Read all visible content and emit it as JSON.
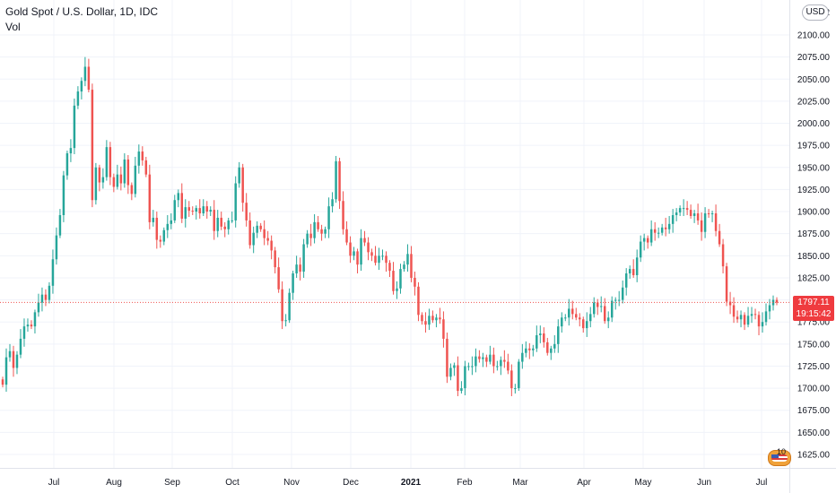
{
  "legend": {
    "title": "Gold Spot / U.S. Dollar, 1D, IDC",
    "sub": "Vol"
  },
  "currency_button": "USD",
  "last_price": {
    "value": "1797.11",
    "countdown": "19:15:42"
  },
  "badge_number": "10",
  "colors": {
    "up": "#26a69a",
    "down": "#ef5350",
    "grid": "#f0f3fa",
    "price_line": "#ef5350",
    "tag": "#ef3b3f"
  },
  "chart_data": {
    "type": "candlestick",
    "title": "Gold Spot / U.S. Dollar, 1D, IDC",
    "ylabel": "",
    "xlabel": "",
    "ylim": [
      1615,
      2110
    ],
    "y_ticks": [
      "1625.00",
      "1650.00",
      "1675.00",
      "1700.00",
      "1725.00",
      "1750.00",
      "1775.00",
      "1800.00",
      "1825.00",
      "1850.00",
      "1875.00",
      "1900.00",
      "1925.00",
      "1950.00",
      "1975.00",
      "2000.00",
      "2025.00",
      "2050.00",
      "2075.00",
      "2100.00"
    ],
    "x_ticks": [
      "Jul",
      "Aug",
      "Sep",
      "Oct",
      "Nov",
      "Dec",
      "2021",
      "Feb",
      "Mar",
      "Apr",
      "May",
      "Jun",
      "Jul"
    ],
    "x_tick_bold": [
      "2021"
    ],
    "last_price": 1797.11,
    "grid": true,
    "series": [
      {
        "close": [
          1704,
          1735,
          1742,
          1723,
          1738,
          1756,
          1770,
          1772,
          1770,
          1786,
          1797,
          1806,
          1800,
          1816,
          1846,
          1873,
          1896,
          1941,
          1966,
          1972,
          2020,
          2036,
          2048,
          2064,
          2038,
          1913,
          1950,
          1933,
          1939,
          1973,
          1939,
          1928,
          1942,
          1932,
          1959,
          1930,
          1920,
          1952,
          1968,
          1958,
          1942,
          1888,
          1893,
          1868,
          1866,
          1879,
          1886,
          1890,
          1913,
          1921,
          1892,
          1905,
          1901,
          1900,
          1904,
          1898,
          1906,
          1900,
          1902,
          1878,
          1893,
          1883,
          1880,
          1890,
          1890,
          1932,
          1950,
          1910,
          1890,
          1862,
          1876,
          1884,
          1880,
          1870,
          1867,
          1856,
          1837,
          1812,
          1776,
          1777,
          1808,
          1830,
          1840,
          1832,
          1863,
          1875,
          1870,
          1888,
          1880,
          1875,
          1880,
          1906,
          1914,
          1957,
          1912,
          1880,
          1865,
          1850,
          1855,
          1840,
          1870,
          1865,
          1854,
          1850,
          1842,
          1850,
          1850,
          1842,
          1833,
          1810,
          1813,
          1835,
          1840,
          1852,
          1825,
          1815,
          1783,
          1776,
          1772,
          1782,
          1777,
          1780,
          1778,
          1756,
          1713,
          1723,
          1726,
          1697,
          1700,
          1725,
          1725,
          1725,
          1736,
          1733,
          1735,
          1730,
          1738,
          1725,
          1725,
          1732,
          1730,
          1720,
          1700,
          1700,
          1730,
          1740,
          1745,
          1743,
          1745,
          1760,
          1762,
          1752,
          1740,
          1745,
          1750,
          1770,
          1780,
          1780,
          1790,
          1784,
          1780,
          1778,
          1768,
          1776,
          1784,
          1797,
          1792,
          1793,
          1776,
          1780,
          1799,
          1800,
          1800,
          1814,
          1830,
          1835,
          1828,
          1848,
          1866,
          1870,
          1865,
          1880,
          1876,
          1876,
          1882,
          1880,
          1886,
          1896,
          1899,
          1904,
          1904,
          1902,
          1895,
          1898,
          1890,
          1877,
          1898,
          1897,
          1898,
          1878,
          1863,
          1838,
          1798,
          1794,
          1781,
          1778,
          1783,
          1772,
          1782,
          1784,
          1783,
          1770,
          1775,
          1787,
          1794,
          1800,
          1797
        ]
      }
    ],
    "annotations": [
      "horizontal price line at last price"
    ]
  }
}
